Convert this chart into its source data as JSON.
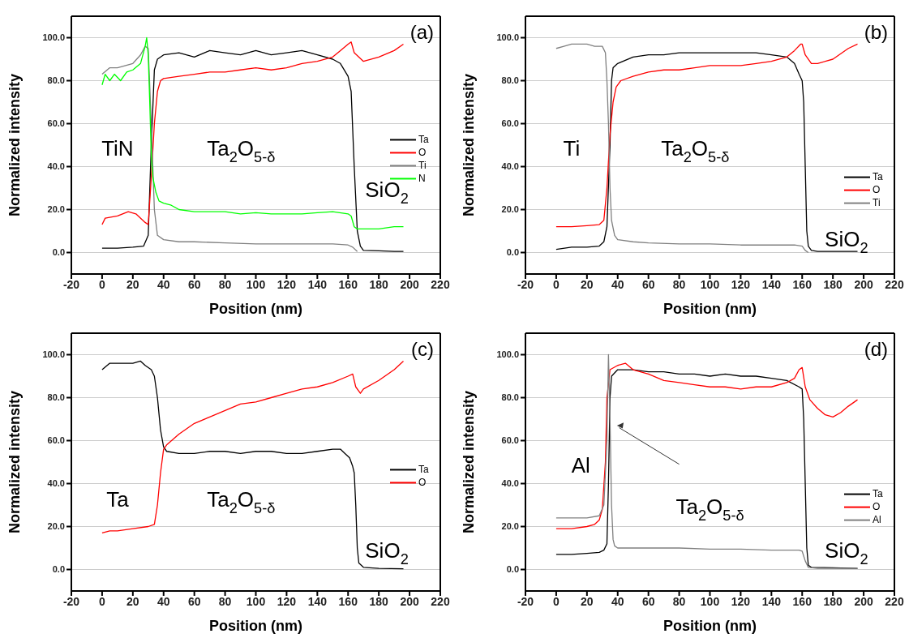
{
  "chart_data": [
    {
      "type": "line",
      "xlabel": "Position (nm)",
      "ylabel": "Normalized intensity",
      "xlim": [
        -20,
        220
      ],
      "xticks": [
        -20,
        0,
        20,
        40,
        60,
        80,
        100,
        120,
        140,
        160,
        180,
        200,
        220
      ],
      "ylim": [
        -10,
        110
      ],
      "yticks": [
        {
          "value": 0,
          "label": "0.0"
        },
        {
          "value": 20,
          "label": "20.0"
        },
        {
          "value": 40,
          "label": "40.0"
        },
        {
          "value": 60,
          "label": "60.0"
        },
        {
          "value": 80,
          "label": "80.0"
        },
        {
          "value": 100,
          "label": "100.0"
        }
      ],
      "grid": "y",
      "legend": "right",
      "annotations": [
        "(a)",
        "TiN",
        "Ta$_{2}$O$_{5-δ}$",
        "SiO$_{2}$"
      ],
      "series": [
        {
          "name": "Ta",
          "color": "#000000",
          "x": [
            0,
            10,
            20,
            27,
            30,
            32,
            34,
            36,
            40,
            50,
            60,
            70,
            80,
            90,
            100,
            110,
            120,
            130,
            140,
            150,
            155,
            160,
            162,
            164,
            166,
            168,
            170,
            180,
            190,
            196
          ],
          "values": [
            2,
            2,
            2.5,
            3,
            8,
            50,
            85,
            90,
            92,
            93,
            91,
            94,
            93,
            92,
            94,
            92,
            93,
            94,
            92,
            90,
            88,
            82,
            75,
            40,
            10,
            3,
            1,
            0.8,
            0.5,
            0.5
          ]
        },
        {
          "name": "O",
          "color": "#ff0000",
          "x": [
            0,
            2,
            10,
            17,
            22,
            28,
            30,
            32,
            34,
            36,
            38,
            40,
            50,
            60,
            70,
            80,
            90,
            100,
            110,
            120,
            130,
            140,
            150,
            155,
            160,
            162,
            164,
            170,
            180,
            190,
            196
          ],
          "values": [
            13,
            16,
            17,
            19,
            18,
            14,
            13,
            35,
            60,
            75,
            80,
            81,
            82,
            83,
            84,
            84,
            85,
            86,
            85,
            86,
            88,
            89,
            91,
            94,
            97,
            98,
            93,
            89,
            91,
            94,
            97
          ]
        },
        {
          "name": "Ti",
          "color": "#808080",
          "x": [
            0,
            5,
            10,
            20,
            25,
            28,
            30,
            32,
            34,
            36,
            40,
            50,
            60,
            80,
            100,
            120,
            140,
            150,
            160,
            163,
            166
          ],
          "values": [
            83,
            86,
            86,
            88,
            92,
            96,
            95,
            60,
            20,
            8,
            6,
            5,
            5,
            4.5,
            4,
            4,
            4,
            4,
            3.5,
            2.5,
            0.5
          ]
        },
        {
          "name": "N",
          "color": "#00ff00",
          "x": [
            0,
            2,
            5,
            8,
            12,
            16,
            20,
            25,
            28,
            29,
            30,
            31,
            32,
            33,
            35,
            37,
            40,
            45,
            50,
            60,
            70,
            80,
            90,
            100,
            110,
            120,
            130,
            140,
            150,
            160,
            162,
            164,
            166,
            170,
            180,
            190,
            196
          ],
          "values": [
            78,
            83,
            80,
            83,
            80,
            84,
            85,
            88,
            96,
            100,
            92,
            70,
            45,
            35,
            28,
            24,
            23,
            22,
            20,
            19,
            19,
            19,
            18,
            18.5,
            18,
            18,
            18,
            18.5,
            19,
            18,
            17,
            12,
            11,
            11,
            11,
            12,
            12
          ]
        }
      ]
    },
    {
      "type": "line",
      "xlabel": "Position (nm)",
      "ylabel": "Normalized intensity",
      "xlim": [
        -20,
        220
      ],
      "xticks": [
        -20,
        0,
        20,
        40,
        60,
        80,
        100,
        120,
        140,
        160,
        180,
        200,
        220
      ],
      "ylim": [
        -10,
        110
      ],
      "yticks": [
        {
          "value": 0,
          "label": "0.0"
        },
        {
          "value": 20,
          "label": "20.0"
        },
        {
          "value": 40,
          "label": "40.0"
        },
        {
          "value": 60,
          "label": "60.0"
        },
        {
          "value": 80,
          "label": "80.0"
        },
        {
          "value": 100,
          "label": "100.0"
        }
      ],
      "grid": "y",
      "legend": "bottom right",
      "annotations": [
        "(b)",
        "Ti",
        "Ta$_{2}$O$_{5-δ}$",
        "SiO$_{2}$"
      ],
      "series": [
        {
          "name": "Ta",
          "color": "#000000",
          "x": [
            0,
            10,
            20,
            28,
            31,
            33,
            35,
            36,
            37,
            40,
            50,
            60,
            70,
            80,
            90,
            100,
            110,
            120,
            130,
            140,
            150,
            155,
            158,
            160,
            161,
            162,
            163,
            164,
            166,
            170,
            196
          ],
          "values": [
            1.5,
            2.5,
            2.5,
            3,
            5,
            12,
            50,
            80,
            86,
            88,
            91,
            92,
            92,
            93,
            93,
            93,
            93,
            93,
            93,
            92,
            91,
            88,
            83,
            80,
            70,
            40,
            10,
            3,
            1,
            0.5,
            0.5
          ]
        },
        {
          "name": "O",
          "color": "#ff0000",
          "x": [
            0,
            10,
            20,
            28,
            31,
            33,
            35,
            37,
            39,
            42,
            50,
            60,
            70,
            80,
            90,
            100,
            110,
            120,
            130,
            140,
            150,
            155,
            159,
            160,
            162,
            166,
            170,
            180,
            190,
            196
          ],
          "values": [
            12,
            12,
            12.5,
            13,
            15,
            30,
            55,
            70,
            77,
            80,
            82,
            84,
            85,
            85,
            86,
            87,
            87,
            87,
            88,
            89,
            91,
            94,
            97,
            97,
            92,
            88,
            88,
            90,
            95,
            97
          ]
        },
        {
          "name": "Ti",
          "color": "#808080",
          "x": [
            0,
            5,
            10,
            15,
            20,
            25,
            30,
            32,
            33,
            34,
            35,
            36,
            38,
            40,
            50,
            60,
            80,
            100,
            120,
            140,
            155,
            160,
            162,
            164
          ],
          "values": [
            95,
            96,
            97,
            97,
            97,
            96,
            96,
            93,
            80,
            60,
            30,
            15,
            8,
            6,
            5,
            4.5,
            4,
            4,
            3.5,
            3.5,
            3.5,
            3,
            1,
            0
          ]
        }
      ]
    },
    {
      "type": "line",
      "xlabel": "Position (nm)",
      "ylabel": "Normalized intensity",
      "xlim": [
        -20,
        220
      ],
      "xticks": [
        -20,
        0,
        20,
        40,
        60,
        80,
        100,
        120,
        140,
        160,
        180,
        200,
        220
      ],
      "ylim": [
        -10,
        110
      ],
      "yticks": [
        {
          "value": 0,
          "label": "0.0"
        },
        {
          "value": 20,
          "label": "20.0"
        },
        {
          "value": 40,
          "label": "40.0"
        },
        {
          "value": 60,
          "label": "60.0"
        },
        {
          "value": 80,
          "label": "80.0"
        },
        {
          "value": 100,
          "label": "100.0"
        }
      ],
      "grid": "y",
      "legend": "right",
      "annotations": [
        "(c)",
        "Ta",
        "Ta$_{2}$O$_{5-δ}$",
        "SiO$_{2}$"
      ],
      "series": [
        {
          "name": "Ta",
          "color": "#000000",
          "x": [
            0,
            5,
            10,
            20,
            25,
            28,
            32,
            34,
            36,
            38,
            40,
            42,
            50,
            60,
            70,
            80,
            90,
            100,
            110,
            120,
            130,
            140,
            150,
            155,
            158,
            161,
            163,
            164,
            165,
            166,
            167,
            170,
            180,
            196
          ],
          "values": [
            93,
            96,
            96,
            96,
            97,
            95,
            93,
            90,
            80,
            65,
            57,
            55,
            54,
            54,
            55,
            55,
            54,
            55,
            55,
            54,
            54,
            55,
            56,
            56,
            54,
            52,
            48,
            45,
            30,
            10,
            3,
            1,
            0.5,
            0.3
          ]
        },
        {
          "name": "O",
          "color": "#ff0000",
          "x": [
            0,
            5,
            10,
            20,
            30,
            34,
            36,
            38,
            40,
            42,
            50,
            60,
            70,
            80,
            90,
            100,
            110,
            120,
            130,
            140,
            150,
            160,
            163,
            165,
            168,
            170,
            180,
            190,
            196
          ],
          "values": [
            17,
            18,
            18,
            19,
            20,
            21,
            30,
            45,
            56,
            58,
            63,
            68,
            71,
            74,
            77,
            78,
            80,
            82,
            84,
            85,
            87,
            90,
            91,
            85,
            82,
            84,
            88,
            93,
            97
          ]
        }
      ]
    },
    {
      "type": "line",
      "xlabel": "Position (nm)",
      "ylabel": "Normalized intensity",
      "xlim": [
        -20,
        220
      ],
      "xticks": [
        -20,
        0,
        20,
        40,
        60,
        80,
        100,
        120,
        140,
        160,
        180,
        200,
        220
      ],
      "ylim": [
        -10,
        110
      ],
      "yticks": [
        {
          "value": 0,
          "label": "0.0"
        },
        {
          "value": 20,
          "label": "20.0"
        },
        {
          "value": 40,
          "label": "40.0"
        },
        {
          "value": 60,
          "label": "60.0"
        },
        {
          "value": 80,
          "label": "80.0"
        },
        {
          "value": 100,
          "label": "100.0"
        }
      ],
      "grid": "y",
      "legend": "bottom right",
      "annotations": [
        "(d)",
        "Al",
        "Ta$_{2}$O$_{5-δ}$",
        "SiO$_{2}$"
      ],
      "series": [
        {
          "name": "Ta",
          "color": "#000000",
          "x": [
            0,
            10,
            20,
            28,
            31,
            33,
            34,
            35,
            36,
            40,
            50,
            60,
            70,
            80,
            90,
            100,
            110,
            120,
            130,
            140,
            150,
            158,
            160,
            161,
            162,
            163,
            164,
            166,
            180,
            196
          ],
          "values": [
            7,
            7,
            7.5,
            8,
            9,
            12,
            40,
            80,
            90,
            93,
            93,
            92,
            92,
            91,
            91,
            90,
            91,
            90,
            90,
            89,
            88,
            85,
            84,
            70,
            40,
            10,
            2,
            1,
            0.8,
            0.5
          ]
        },
        {
          "name": "O",
          "color": "#ff0000",
          "x": [
            0,
            10,
            20,
            25,
            28,
            30,
            32,
            33,
            35,
            40,
            45,
            50,
            60,
            70,
            80,
            90,
            100,
            110,
            120,
            130,
            140,
            150,
            155,
            158,
            160,
            162,
            165,
            170,
            175,
            180,
            185,
            190,
            196
          ],
          "values": [
            19,
            19,
            20,
            21,
            23,
            28,
            50,
            80,
            93,
            95,
            96,
            93,
            91,
            88,
            87,
            86,
            85,
            85,
            84,
            85,
            85,
            87,
            89,
            93,
            94,
            85,
            79,
            75,
            72,
            71,
            73,
            76,
            79
          ]
        },
        {
          "name": "Al",
          "color": "#808080",
          "x": [
            0,
            10,
            20,
            28,
            31,
            33,
            34,
            35,
            36,
            37,
            38,
            40,
            50,
            60,
            80,
            100,
            120,
            140,
            150,
            158,
            160,
            162,
            164,
            170,
            196
          ],
          "values": [
            24,
            24,
            24,
            25,
            30,
            60,
            100,
            70,
            30,
            14,
            11,
            10,
            10,
            10,
            10,
            9.5,
            9.5,
            9,
            9,
            9,
            8.5,
            4,
            1,
            0.5,
            0.5
          ]
        }
      ]
    }
  ]
}
